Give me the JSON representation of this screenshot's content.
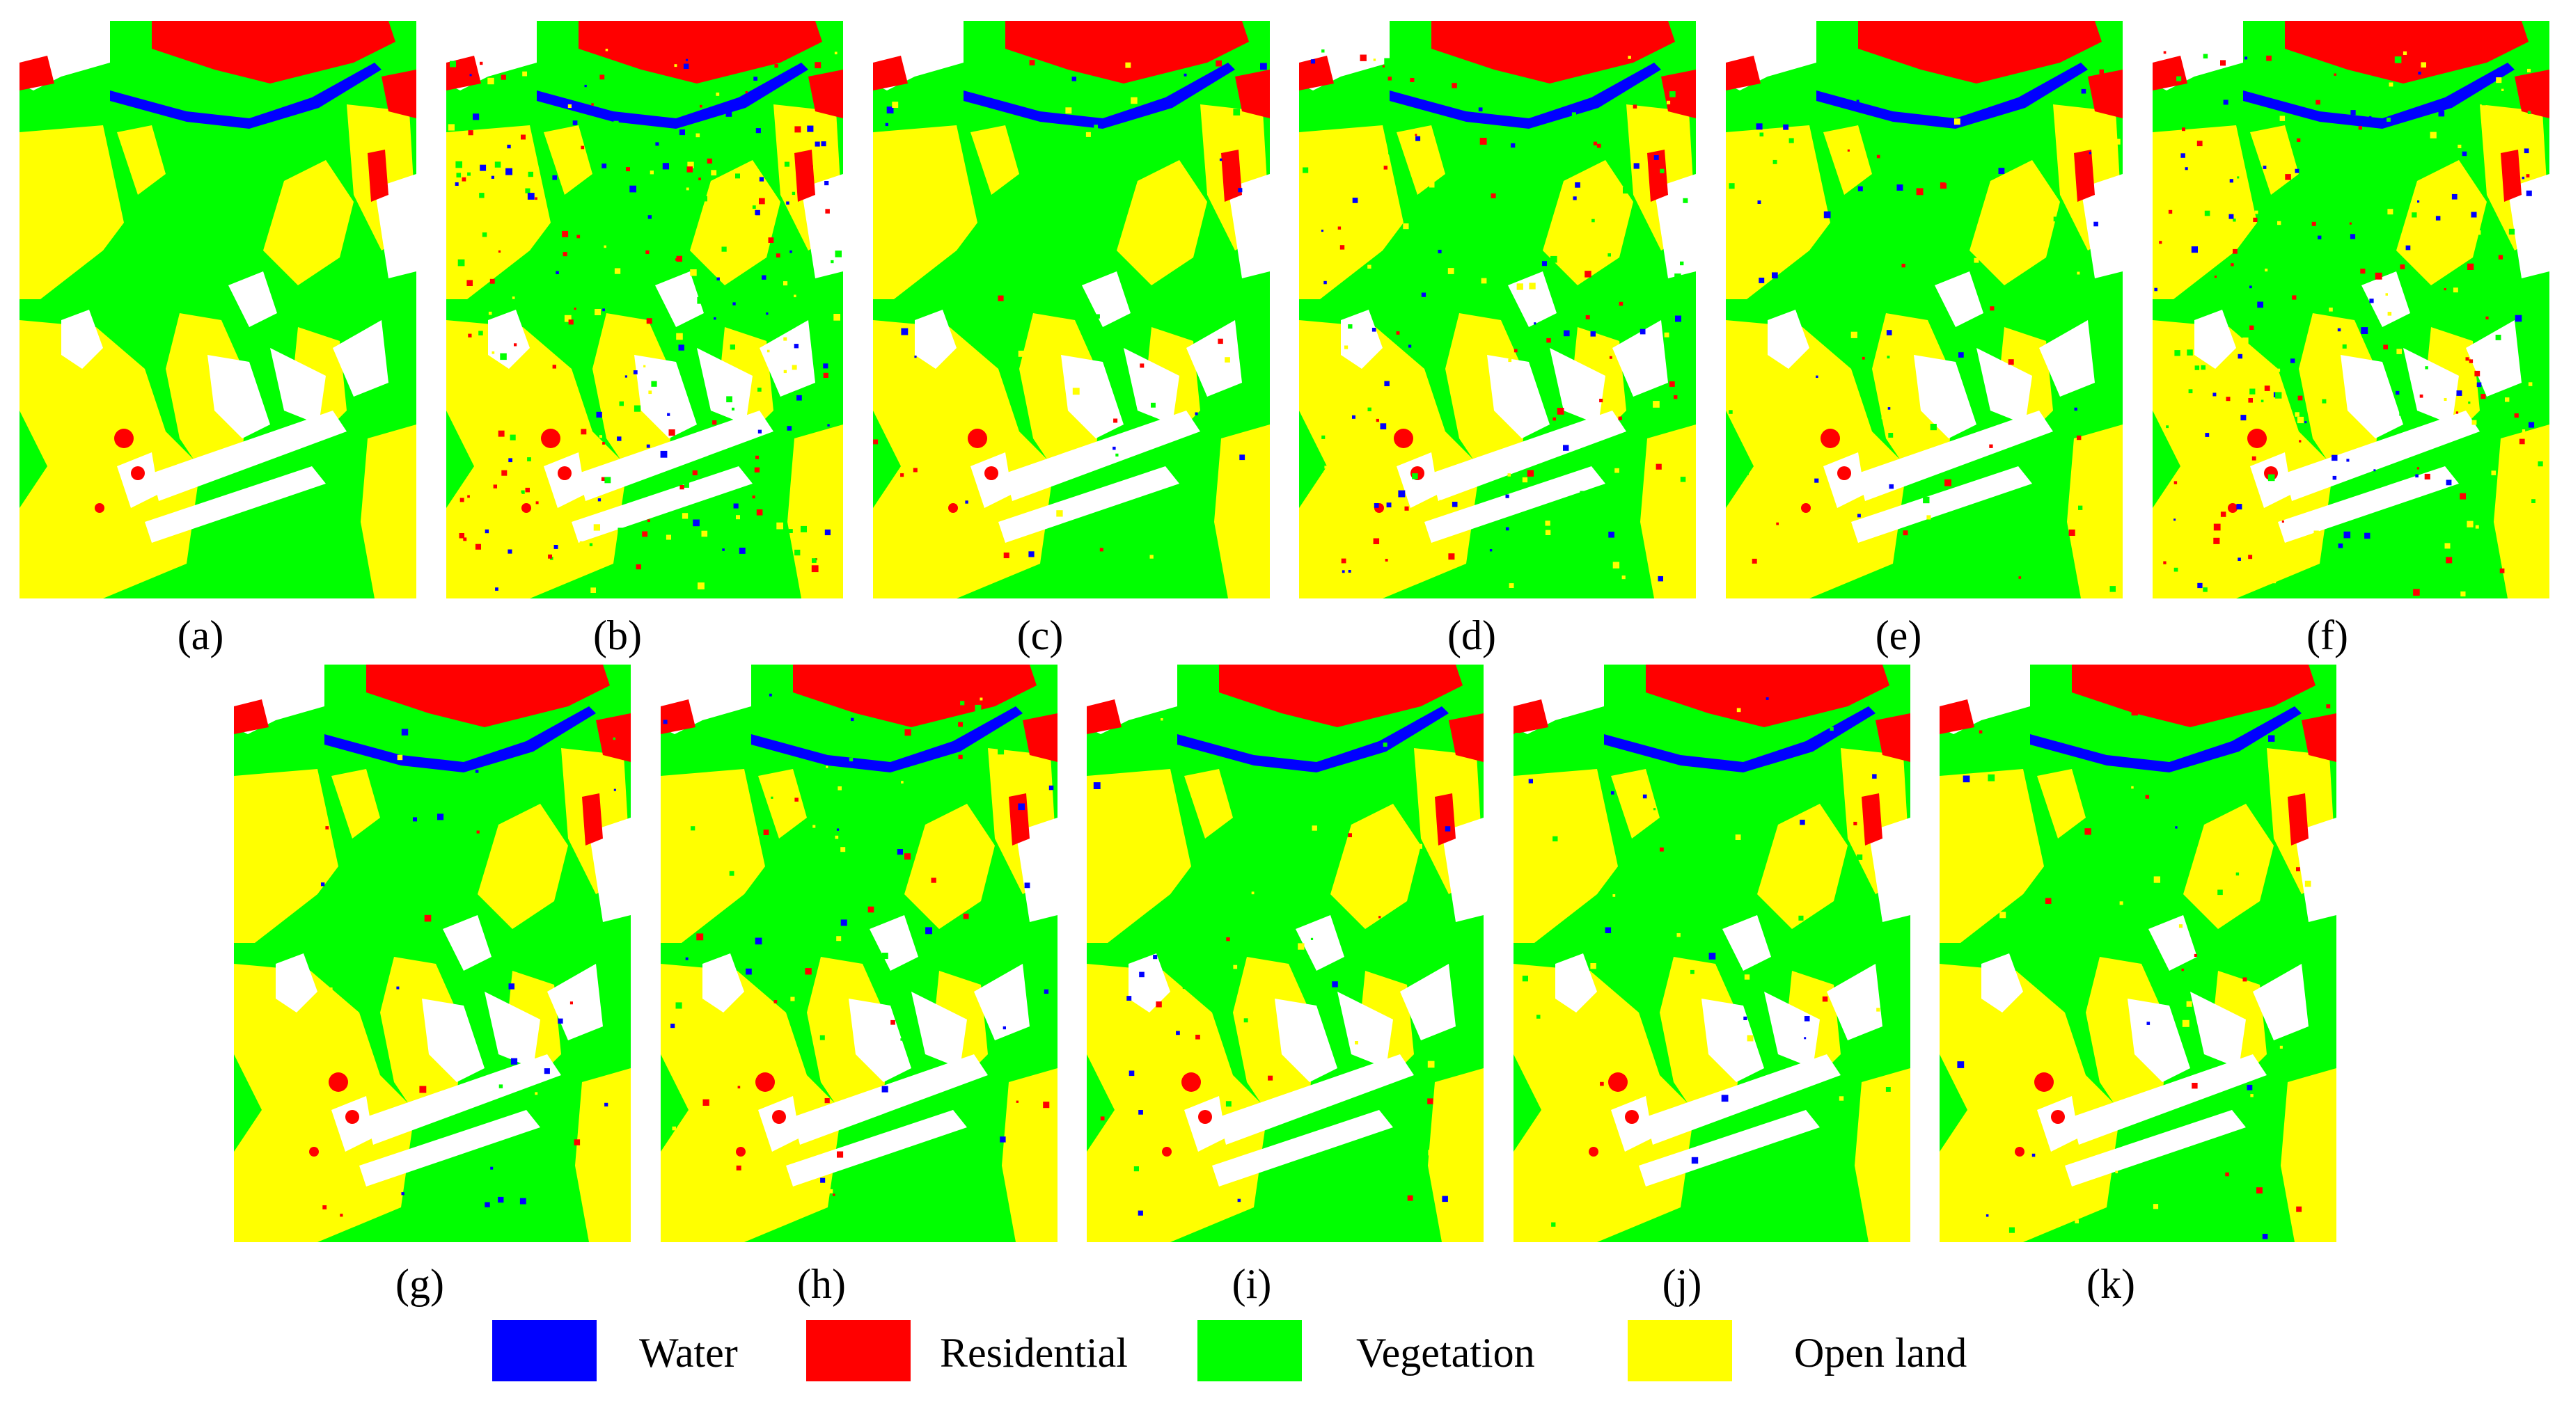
{
  "colors": {
    "water": "#0000FF",
    "residential": "#FF0000",
    "vegetation": "#00FF00",
    "open_land": "#FFFF00",
    "unlabeled": "#FFFFFF"
  },
  "panels": [
    {
      "label": "(a)",
      "noise": 0.0
    },
    {
      "label": "(b)",
      "noise": 0.3
    },
    {
      "label": "(c)",
      "noise": 0.06
    },
    {
      "label": "(d)",
      "noise": 0.16
    },
    {
      "label": "(e)",
      "noise": 0.08
    },
    {
      "label": "(f)",
      "noise": 0.24
    },
    {
      "label": "(g)",
      "noise": 0.05
    },
    {
      "label": "(h)",
      "noise": 0.08
    },
    {
      "label": "(i)",
      "noise": 0.05
    },
    {
      "label": "(j)",
      "noise": 0.05
    },
    {
      "label": "(k)",
      "noise": 0.05
    }
  ],
  "legend": [
    {
      "label": "Water",
      "color": "#0000FF"
    },
    {
      "label": "Residential",
      "color": "#FF0000"
    },
    {
      "label": "Vegetation",
      "color": "#00FF00"
    },
    {
      "label": "Open land",
      "color": "#FFFF00"
    }
  ]
}
